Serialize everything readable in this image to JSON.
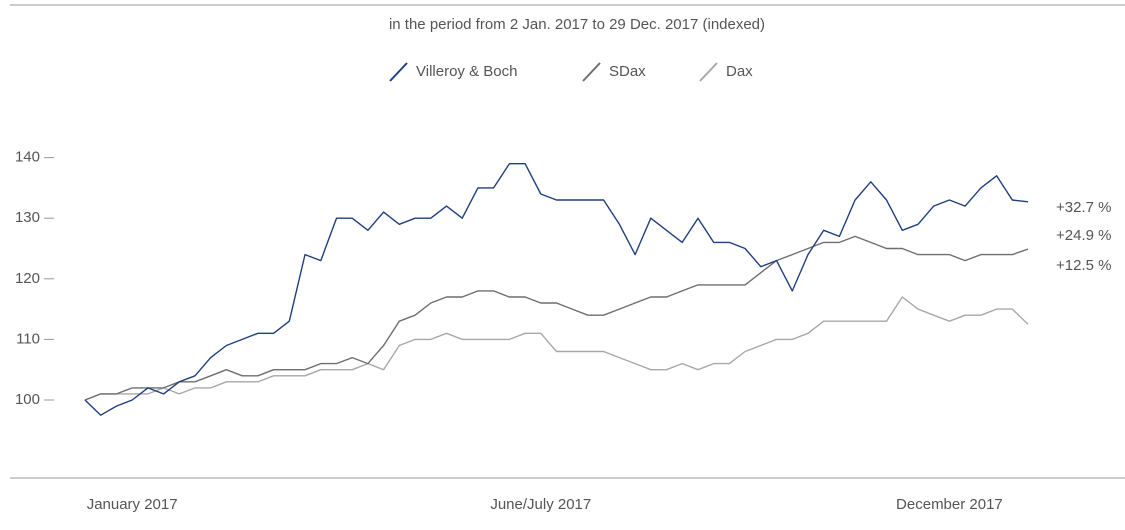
{
  "chart_data": {
    "type": "line",
    "subtitle": "in the period from 2 Jan. 2017 to 29 Dec. 2017 (indexed)",
    "categories": [
      null,
      null,
      null,
      "January 2017",
      null,
      null,
      null,
      null,
      null,
      null,
      null,
      null,
      null,
      null,
      null,
      null,
      null,
      null,
      null,
      null,
      null,
      null,
      null,
      null,
      null,
      null,
      null,
      null,
      null,
      "June/July 2017",
      null,
      null,
      null,
      null,
      null,
      null,
      null,
      null,
      null,
      null,
      null,
      null,
      null,
      null,
      null,
      null,
      null,
      null,
      null,
      null,
      null,
      null,
      null,
      null,
      null,
      "December 2017",
      null,
      null,
      null,
      null,
      null
    ],
    "ylim": [
      90,
      150
    ],
    "yticks": [
      100,
      110,
      120,
      130,
      140
    ],
    "legend": "top",
    "series": [
      {
        "name": "Villeroy & Boch",
        "color": "#1f3f7f",
        "end_label": "+32.7 %",
        "values": [
          100,
          97.5,
          99,
          100,
          102,
          101,
          103,
          104,
          107,
          109,
          110,
          111,
          111,
          113,
          124,
          123,
          130,
          130,
          128,
          131,
          129,
          130,
          130,
          132,
          130,
          135,
          135,
          139,
          139,
          134,
          133,
          133,
          133,
          133,
          129,
          124,
          130,
          128,
          126,
          130,
          126,
          126,
          125,
          122,
          123,
          118,
          124,
          128,
          127,
          133,
          136,
          133,
          128,
          129,
          132,
          133,
          132,
          135,
          137,
          133,
          132.7
        ]
      },
      {
        "name": "SDax",
        "color": "#6e6e6e",
        "end_label": "+24.9 %",
        "values": [
          100,
          101,
          101,
          102,
          102,
          102,
          103,
          103,
          104,
          105,
          104,
          104,
          105,
          105,
          105,
          106,
          106,
          107,
          106,
          109,
          113,
          114,
          116,
          117,
          117,
          118,
          118,
          117,
          117,
          116,
          116,
          115,
          114,
          114,
          115,
          116,
          117,
          117,
          118,
          119,
          119,
          119,
          119,
          121,
          123,
          124,
          125,
          126,
          126,
          127,
          126,
          125,
          125,
          124,
          124,
          124,
          123,
          124,
          124,
          124,
          124.9
        ]
      },
      {
        "name": "Dax",
        "color": "#a8a8a8",
        "end_label": "+12.5 %",
        "values": [
          100,
          101,
          101,
          101,
          101,
          102,
          101,
          102,
          102,
          103,
          103,
          103,
          104,
          104,
          104,
          105,
          105,
          105,
          106,
          105,
          109,
          110,
          110,
          111,
          110,
          110,
          110,
          110,
          111,
          111,
          108,
          108,
          108,
          108,
          107,
          106,
          105,
          105,
          106,
          105,
          106,
          106,
          108,
          109,
          110,
          110,
          111,
          113,
          113,
          113,
          113,
          113,
          117,
          115,
          114,
          113,
          114,
          114,
          115,
          115,
          112.5
        ]
      }
    ]
  }
}
